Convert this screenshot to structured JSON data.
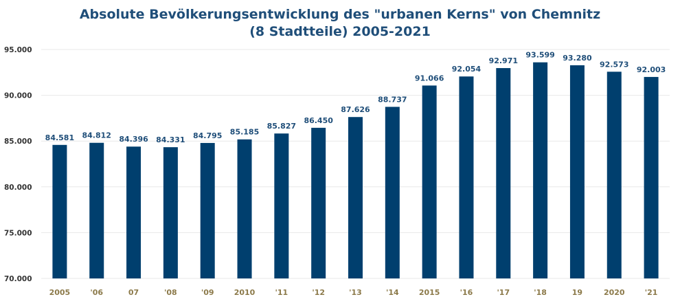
{
  "colors": {
    "bar": "#003f6e",
    "title": "#1f4e79",
    "x_tick": "#8c7a4a",
    "grid": "#e8e8e8"
  },
  "chart_data": {
    "type": "bar",
    "title": "Absolute Bevölkerungsentwicklung des \"urbanen Kerns\" von Chemnitz",
    "subtitle": "(8 Stadtteile) 2005-2021",
    "xlabel": "",
    "ylabel": "",
    "categories": [
      "2005",
      "'06",
      "07",
      "'08",
      "'09",
      "2010",
      "'11",
      "'12",
      "'13",
      "'14",
      "2015",
      "'16",
      "'17",
      "'18",
      "19",
      "2020",
      "'21"
    ],
    "values": [
      84581,
      84812,
      84396,
      84331,
      84795,
      85185,
      85827,
      86450,
      87626,
      88737,
      91066,
      92054,
      92971,
      93599,
      93280,
      92573,
      92003
    ],
    "data_labels": [
      "84.581",
      "84.812",
      "84.396",
      "84.331",
      "84.795",
      "85.185",
      "85.827",
      "86.450",
      "87.626",
      "88.737",
      "91.066",
      "92.054",
      "92.971",
      "93.599",
      "93.280",
      "92.573",
      "92.003"
    ],
    "ylim": [
      70000,
      95000
    ],
    "y_ticks": [
      70000,
      75000,
      80000,
      85000,
      90000,
      95000
    ],
    "y_tick_labels": [
      "70.000",
      "75.000",
      "80.000",
      "85.000",
      "90.000",
      "95.000"
    ],
    "grid": true,
    "legend": "none"
  }
}
